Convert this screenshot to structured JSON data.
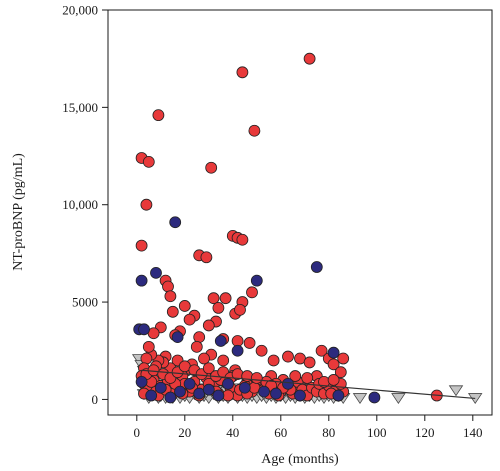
{
  "chart_data": {
    "type": "scatter",
    "title": "",
    "xlabel": "Age (months)",
    "ylabel": "NT-proBNP (pg/mL)",
    "xlim": [
      -12,
      148
    ],
    "ylim": [
      -800,
      20000
    ],
    "x_ticks": [
      0,
      20,
      40,
      60,
      80,
      100,
      120,
      140
    ],
    "x_tick_labels": [
      "0",
      "20",
      "40",
      "60",
      "80",
      "100",
      "120",
      "140"
    ],
    "y_ticks": [
      0,
      5000,
      10000,
      15000,
      20000
    ],
    "y_tick_labels": [
      "0",
      "5000",
      "10,000",
      "15,000",
      "20,000"
    ],
    "grid": false,
    "legend": "none",
    "series": [
      {
        "marker": "circle",
        "color": "#e8393a",
        "points": [
          [
            72,
            17500
          ],
          [
            44,
            16800
          ],
          [
            9,
            14600
          ],
          [
            49,
            13800
          ],
          [
            2,
            12400
          ],
          [
            5,
            12200
          ],
          [
            31,
            11900
          ],
          [
            4,
            10000
          ],
          [
            40,
            8400
          ],
          [
            42,
            8300
          ],
          [
            44,
            8200
          ],
          [
            26,
            7400
          ],
          [
            29,
            7300
          ],
          [
            2,
            7900
          ],
          [
            12,
            6100
          ],
          [
            48,
            5500
          ],
          [
            13,
            5800
          ],
          [
            14,
            5300
          ],
          [
            37,
            5200
          ],
          [
            32,
            5200
          ],
          [
            44,
            5000
          ],
          [
            20,
            4800
          ],
          [
            34,
            4700
          ],
          [
            15,
            4500
          ],
          [
            41,
            4400
          ],
          [
            43,
            4600
          ],
          [
            24,
            4300
          ],
          [
            33,
            4000
          ],
          [
            22,
            4100
          ],
          [
            30,
            3800
          ],
          [
            10,
            3700
          ],
          [
            18,
            3500
          ],
          [
            7,
            3400
          ],
          [
            16,
            3300
          ],
          [
            26,
            3200
          ],
          [
            36,
            3100
          ],
          [
            42,
            3000
          ],
          [
            47,
            2900
          ],
          [
            52,
            2500
          ],
          [
            57,
            2000
          ],
          [
            63,
            2200
          ],
          [
            68,
            2100
          ],
          [
            72,
            1900
          ],
          [
            77,
            2500
          ],
          [
            80,
            2100
          ],
          [
            82,
            1800
          ],
          [
            86,
            2100
          ],
          [
            85,
            1400
          ],
          [
            75,
            1200
          ],
          [
            70,
            900
          ],
          [
            66,
            800
          ],
          [
            61,
            1000
          ],
          [
            56,
            1200
          ],
          [
            51,
            700
          ],
          [
            46,
            900
          ],
          [
            41,
            1500
          ],
          [
            36,
            2000
          ],
          [
            31,
            2300
          ],
          [
            28,
            2100
          ],
          [
            25,
            2700
          ],
          [
            23,
            1800
          ],
          [
            21,
            1500
          ],
          [
            19,
            1200
          ],
          [
            17,
            2000
          ],
          [
            14,
            1600
          ],
          [
            12,
            2200
          ],
          [
            11,
            1900
          ],
          [
            9,
            2000
          ],
          [
            8,
            1700
          ],
          [
            6,
            2300
          ],
          [
            5,
            2700
          ],
          [
            4,
            2100
          ],
          [
            3,
            1600
          ],
          [
            2,
            1200
          ],
          [
            3,
            800
          ],
          [
            5,
            600
          ],
          [
            7,
            1000
          ],
          [
            8,
            400
          ],
          [
            10,
            700
          ],
          [
            13,
            900
          ],
          [
            15,
            300
          ],
          [
            18,
            600
          ],
          [
            20,
            800
          ],
          [
            22,
            400
          ],
          [
            24,
            900
          ],
          [
            27,
            500
          ],
          [
            29,
            1100
          ],
          [
            32,
            700
          ],
          [
            34,
            300
          ],
          [
            37,
            900
          ],
          [
            39,
            600
          ],
          [
            42,
            200
          ],
          [
            45,
            700
          ],
          [
            48,
            400
          ],
          [
            50,
            1000
          ],
          [
            53,
            500
          ],
          [
            55,
            300
          ],
          [
            58,
            800
          ],
          [
            60,
            400
          ],
          [
            62,
            600
          ],
          [
            65,
            300
          ],
          [
            67,
            900
          ],
          [
            69,
            500
          ],
          [
            71,
            200
          ],
          [
            73,
            600
          ],
          [
            75,
            400
          ],
          [
            78,
            300
          ],
          [
            80,
            700
          ],
          [
            83,
            500
          ],
          [
            84,
            200
          ],
          [
            86,
            400
          ],
          [
            125,
            200
          ],
          [
            3,
            300
          ],
          [
            6,
            900
          ],
          [
            9,
            200
          ],
          [
            12,
            500
          ],
          [
            16,
            800
          ],
          [
            19,
            300
          ],
          [
            23,
            600
          ],
          [
            26,
            200
          ],
          [
            30,
            800
          ],
          [
            33,
            400
          ],
          [
            35,
            1000
          ],
          [
            38,
            200
          ],
          [
            40,
            1200
          ],
          [
            43,
            500
          ],
          [
            46,
            300
          ],
          [
            49,
            600
          ],
          [
            54,
            900
          ],
          [
            59,
            200
          ],
          [
            64,
            500
          ],
          [
            76,
            800
          ],
          [
            81,
            300
          ],
          [
            85,
            800
          ],
          [
            4,
            1300
          ],
          [
            7,
            1500
          ],
          [
            11,
            1300
          ],
          [
            14,
            1100
          ],
          [
            17,
            1400
          ],
          [
            20,
            1700
          ],
          [
            24,
            1500
          ],
          [
            27,
            1300
          ],
          [
            30,
            1600
          ],
          [
            33,
            1200
          ],
          [
            36,
            1400
          ],
          [
            39,
            1100
          ],
          [
            42,
            1300
          ],
          [
            46,
            1200
          ],
          [
            50,
            1100
          ],
          [
            56,
            700
          ],
          [
            61,
            600
          ],
          [
            66,
            1200
          ],
          [
            71,
            1100
          ],
          [
            78,
            900
          ],
          [
            82,
            1000
          ]
        ]
      },
      {
        "marker": "circle",
        "color": "#2c2a7e",
        "points": [
          [
            16,
            9100
          ],
          [
            75,
            6800
          ],
          [
            50,
            6100
          ],
          [
            2,
            6100
          ],
          [
            8,
            6500
          ],
          [
            1,
            3600
          ],
          [
            3,
            3600
          ],
          [
            17,
            3200
          ],
          [
            35,
            3000
          ],
          [
            42,
            2500
          ],
          [
            82,
            2400
          ],
          [
            2,
            900
          ],
          [
            10,
            600
          ],
          [
            18,
            400
          ],
          [
            26,
            300
          ],
          [
            34,
            200
          ],
          [
            45,
            600
          ],
          [
            58,
            300
          ],
          [
            68,
            200
          ],
          [
            99,
            100
          ],
          [
            6,
            200
          ],
          [
            14,
            100
          ],
          [
            30,
            500
          ],
          [
            53,
            400
          ],
          [
            63,
            800
          ],
          [
            84,
            200
          ],
          [
            38,
            800
          ],
          [
            22,
            800
          ]
        ]
      },
      {
        "marker": "triangle-down",
        "color": "#c4c4c4",
        "points": [
          [
            1,
            2100
          ],
          [
            2,
            1800
          ],
          [
            3,
            1500
          ],
          [
            4,
            1100
          ],
          [
            5,
            900
          ],
          [
            6,
            700
          ],
          [
            7,
            500
          ],
          [
            8,
            300
          ],
          [
            9,
            100
          ],
          [
            10,
            200
          ],
          [
            11,
            400
          ],
          [
            12,
            100
          ],
          [
            13,
            600
          ],
          [
            15,
            100
          ],
          [
            16,
            300
          ],
          [
            18,
            100
          ],
          [
            20,
            200
          ],
          [
            22,
            100
          ],
          [
            24,
            300
          ],
          [
            26,
            100
          ],
          [
            28,
            200
          ],
          [
            30,
            100
          ],
          [
            32,
            300
          ],
          [
            34,
            100
          ],
          [
            36,
            200
          ],
          [
            38,
            100
          ],
          [
            40,
            300
          ],
          [
            42,
            100
          ],
          [
            44,
            200
          ],
          [
            46,
            100
          ],
          [
            48,
            200
          ],
          [
            50,
            100
          ],
          [
            52,
            200
          ],
          [
            54,
            100
          ],
          [
            56,
            200
          ],
          [
            58,
            100
          ],
          [
            60,
            200
          ],
          [
            62,
            100
          ],
          [
            64,
            200
          ],
          [
            66,
            100
          ],
          [
            68,
            200
          ],
          [
            70,
            100
          ],
          [
            72,
            200
          ],
          [
            74,
            100
          ],
          [
            76,
            200
          ],
          [
            78,
            100
          ],
          [
            80,
            200
          ],
          [
            82,
            100
          ],
          [
            84,
            200
          ],
          [
            86,
            100
          ],
          [
            93,
            100
          ],
          [
            109,
            100
          ],
          [
            133,
            500
          ],
          [
            141,
            100
          ],
          [
            3,
            300
          ],
          [
            5,
            100
          ],
          [
            7,
            800
          ],
          [
            9,
            600
          ],
          [
            11,
            1000
          ],
          [
            14,
            500
          ],
          [
            17,
            700
          ],
          [
            21,
            400
          ],
          [
            25,
            600
          ],
          [
            29,
            400
          ],
          [
            33,
            500
          ],
          [
            37,
            400
          ],
          [
            41,
            600
          ],
          [
            45,
            400
          ],
          [
            49,
            500
          ],
          [
            53,
            300
          ],
          [
            57,
            400
          ],
          [
            61,
            300
          ]
        ]
      }
    ],
    "trendline": {
      "points": [
        [
          2,
          1500
        ],
        [
          141,
          50
        ]
      ],
      "color": "#333333"
    }
  }
}
